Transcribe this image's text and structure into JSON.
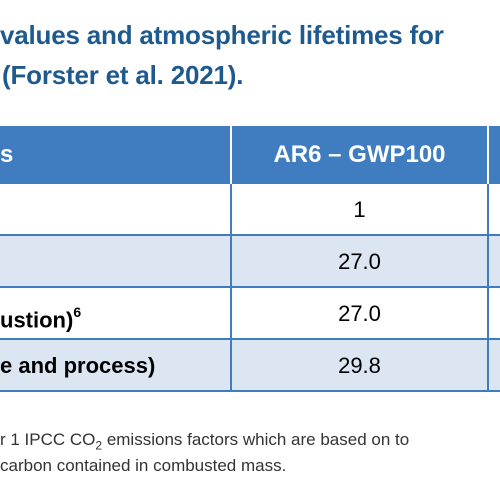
{
  "caption": {
    "line1": "values and atmospheric lifetimes for",
    "line2": "(Forster et al. 2021)."
  },
  "table": {
    "header": {
      "col1": "s",
      "col2": "AR6 – GWP100",
      "col3": ""
    },
    "rows": [
      {
        "col1": "",
        "col2": "1"
      },
      {
        "col1": "",
        "col2": "27.0"
      },
      {
        "col1": "ustion)",
        "col1_sup": "6",
        "col2": "27.0"
      },
      {
        "col1": "e and process)",
        "col2": "29.8"
      }
    ]
  },
  "footnote": {
    "line1_a": "r 1 IPCC CO",
    "line1_sub": "2",
    "line1_b": " emissions factors which are based on to",
    "line2": "carbon contained in combusted mass."
  },
  "colors": {
    "accent": "#3f7cc0",
    "caption": "#1f5a8f",
    "row_alt": "#dce6f2"
  }
}
